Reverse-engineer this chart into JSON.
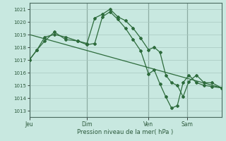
{
  "bg_color": "#c8e8e0",
  "grid_color": "#a8c8c0",
  "line_color": "#2d6b3c",
  "marker_color": "#2d6b3c",
  "xlabel": "Pression niveau de la mer( hPa )",
  "ylabel_ticks": [
    1013,
    1014,
    1015,
    1016,
    1017,
    1018,
    1019,
    1020,
    1021
  ],
  "day_labels": [
    "Jeu",
    "Dim",
    "Ven",
    "Sam"
  ],
  "day_positions": [
    0.0,
    0.3,
    0.62,
    0.82
  ],
  "ylim": [
    1012.5,
    1021.5
  ],
  "xlim": [
    0.0,
    1.0
  ],
  "line1_x": [
    0.0,
    0.04,
    0.08,
    0.13,
    0.19,
    0.25,
    0.3,
    0.34,
    0.38,
    0.42,
    0.46,
    0.5,
    0.54,
    0.58,
    0.62,
    0.65,
    0.68,
    0.71,
    0.74,
    0.77,
    0.8,
    0.83,
    0.87,
    0.91,
    0.95,
    1.0
  ],
  "line1_y": [
    1017.0,
    1017.8,
    1018.8,
    1019.0,
    1018.8,
    1018.5,
    1018.3,
    1020.3,
    1020.6,
    1021.0,
    1020.4,
    1020.1,
    1019.5,
    1018.7,
    1017.8,
    1018.0,
    1017.6,
    1015.8,
    1015.2,
    1015.0,
    1014.1,
    1015.3,
    1015.8,
    1015.2,
    1015.2,
    1014.8
  ],
  "line2_x": [
    0.0,
    0.04,
    0.08,
    0.13,
    0.19,
    0.25,
    0.3,
    0.34,
    0.38,
    0.42,
    0.46,
    0.5,
    0.54,
    0.58,
    0.62,
    0.65,
    0.68,
    0.71,
    0.74,
    0.77,
    0.8,
    0.83,
    0.87,
    0.91,
    0.95,
    1.0
  ],
  "line2_y": [
    1017.0,
    1017.8,
    1018.5,
    1019.2,
    1018.6,
    1018.5,
    1018.2,
    1018.3,
    1020.4,
    1020.8,
    1020.2,
    1019.5,
    1018.6,
    1017.7,
    1015.9,
    1016.2,
    1015.1,
    1014.1,
    1013.2,
    1013.4,
    1015.2,
    1015.8,
    1015.2,
    1015.0,
    1014.9,
    1014.8
  ],
  "line3_x": [
    0.0,
    1.0
  ],
  "line3_y": [
    1019.0,
    1014.8
  ]
}
